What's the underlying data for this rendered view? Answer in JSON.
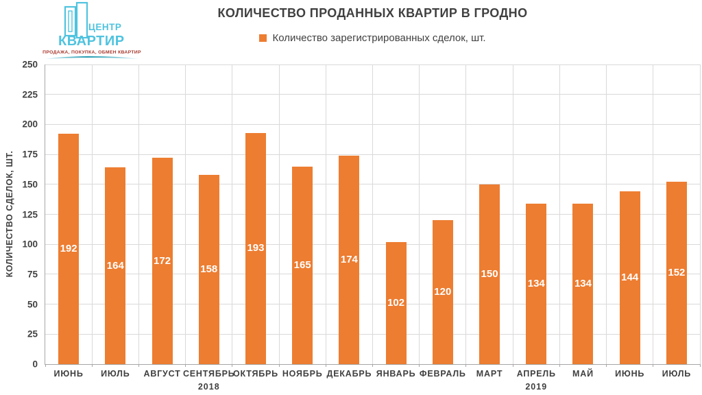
{
  "logo": {
    "brand_top": "ЦЕНТР",
    "brand_bottom": "КВАРТИР",
    "tagline": "ПРОДАЖА, ПОКУПКА, ОБМЕН КВАРТИР",
    "brand_color": "#4FC3DF",
    "tagline_color": "#A8382E",
    "swoosh_color": "#2E9FB5"
  },
  "chart_data": {
    "type": "bar",
    "title": "КОЛИЧЕСТВО ПРОДАННЫХ КВАРТИР В ГРОДНО",
    "legend": [
      {
        "label": "Количество зарегистрированных сделок, шт.",
        "color": "#ED7D31"
      }
    ],
    "legend_position": "top",
    "ylabel": "КОЛИЧЕСТВО СДЕЛОК, ШТ.",
    "xlabel": "",
    "categories": [
      "ИЮНЬ",
      "ИЮЛЬ",
      "АВГУСТ",
      "СЕНТЯБРЬ",
      "ОКТЯБРЬ",
      "НОЯБРЬ",
      "ДЕКАБРЬ",
      "ЯНВАРЬ",
      "ФЕВРАЛЬ",
      "МАРТ",
      "АПРЕЛЬ",
      "МАЙ",
      "ИЮНЬ",
      "ИЮЛЬ"
    ],
    "values": [
      192,
      164,
      172,
      158,
      193,
      165,
      174,
      102,
      120,
      150,
      134,
      134,
      144,
      152
    ],
    "year_groups": [
      {
        "label": "2018",
        "from": 0,
        "to": 6
      },
      {
        "label": "2019",
        "from": 7,
        "to": 13
      }
    ],
    "ylim": [
      0,
      250
    ],
    "yticks": [
      0,
      25,
      50,
      75,
      100,
      125,
      150,
      175,
      200,
      225,
      250
    ],
    "grid": true,
    "bar_color": "#ED7D31",
    "value_label_color": "#FFFFFF",
    "axis_text_color": "#404040",
    "gridline_color": "#D9D9D9",
    "axis_line_color": "#A6A6A6"
  }
}
